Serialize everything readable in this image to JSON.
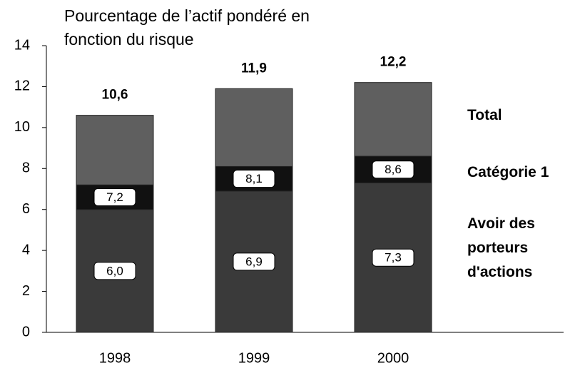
{
  "chart_data": {
    "type": "bar",
    "title": "Pourcentage de l’actif pondéré en fonction du risque",
    "categories": [
      "1998",
      "1999",
      "2000"
    ],
    "series": [
      {
        "name": "Total",
        "color": "#5f5f5f",
        "values": [
          10.6,
          11.9,
          12.2
        ],
        "value_labels": [
          "10,6",
          "11,9",
          "12,2"
        ]
      },
      {
        "name": "Catégorie 1",
        "color": "#111111",
        "values": [
          7.2,
          8.1,
          8.6
        ],
        "value_labels": [
          "7,2",
          "8,1",
          "8,6"
        ]
      },
      {
        "name": "Avoir des porteurs d'actions",
        "color": "#3a3a3a",
        "values": [
          6.0,
          6.9,
          7.3
        ],
        "value_labels": [
          "6,0",
          "6,9",
          "7,3"
        ]
      }
    ],
    "ylim": [
      0,
      14
    ],
    "yticks": [
      0,
      2,
      4,
      6,
      8,
      10,
      12,
      14
    ],
    "grid": false
  }
}
